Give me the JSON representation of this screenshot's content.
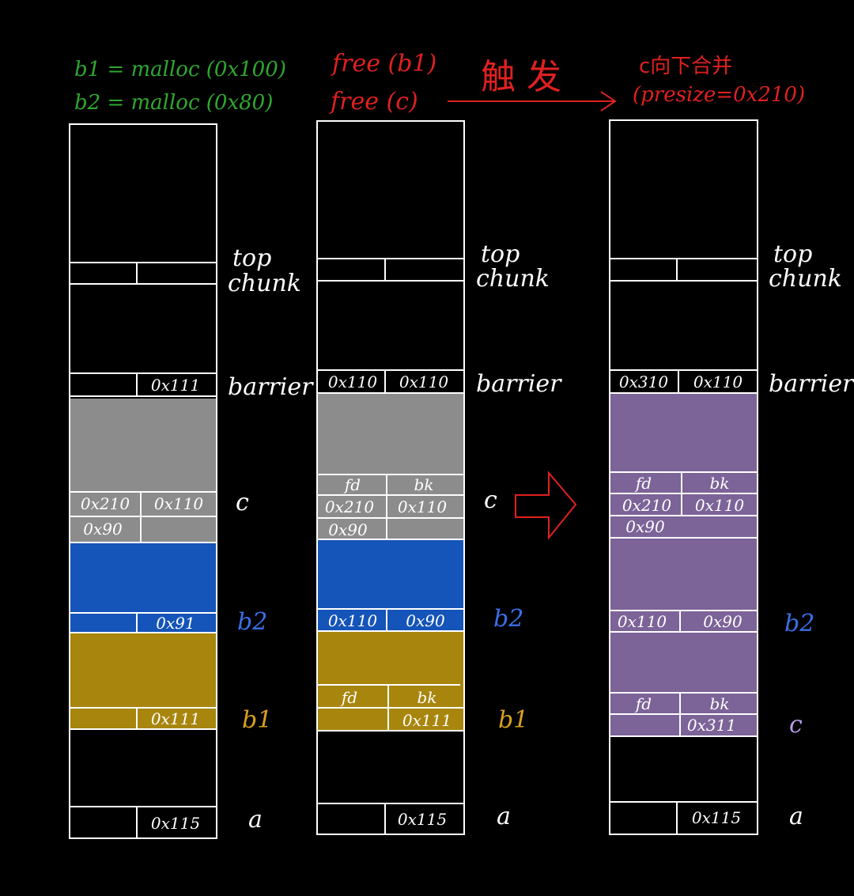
{
  "headers": {
    "ops_left": [
      "b1 = malloc (0x100)",
      "b2 = malloc (0x80)"
    ],
    "ops_mid": [
      "free (b1)",
      "free (c)"
    ],
    "trigger": "触 发",
    "result": [
      "c向下合并",
      "(presize=0x210)"
    ]
  },
  "labels": {
    "top_chunk": [
      "top",
      "chunk"
    ],
    "barrier": "barrier",
    "c": "c",
    "b2": "b2",
    "b1": "b1",
    "a": "a"
  },
  "columns": [
    {
      "barrier": [
        "",
        "0x111"
      ],
      "c_ptrs": null,
      "c_header": [
        "0x210",
        "0x110"
      ],
      "c_under": "0x90",
      "b2_header": [
        "",
        "0x91"
      ],
      "b1_ptrs": null,
      "b1_header": [
        "",
        "0x111"
      ],
      "a_header": [
        "",
        "0x115"
      ]
    },
    {
      "barrier": [
        "0x110",
        "0x110"
      ],
      "c_ptrs": [
        "fd",
        "bk"
      ],
      "c_header": [
        "0x210",
        "0x110"
      ],
      "c_under": "0x90",
      "b2_header": [
        "0x110",
        "0x90"
      ],
      "b1_ptrs": [
        "fd",
        "bk"
      ],
      "b1_header": [
        "",
        "0x111"
      ],
      "a_header": [
        "",
        "0x115"
      ]
    },
    {
      "barrier": [
        "0x310",
        "0x110"
      ],
      "c_ptrs": [
        "fd",
        "bk"
      ],
      "c_header": [
        "0x210",
        "0x110"
      ],
      "c_under": "0x90",
      "b2_header": [
        "0x110",
        "0x90"
      ],
      "b1_ptrs": [
        "fd",
        "bk"
      ],
      "b1_header": [
        "",
        "0x311"
      ],
      "a_header": [
        "",
        "0x115"
      ]
    }
  ],
  "colors": {
    "ops_left": "#2fa830",
    "ops_mid": "#e02020",
    "c_chunk": "#8c8c8c",
    "b2_chunk": "#1554b8",
    "b1_chunk": "#a8860e",
    "merged_chunk": "#7c6398",
    "b2_label": "#3a6fe6",
    "b1_label": "#d9a21c",
    "merged_label": "#b79ae6"
  }
}
